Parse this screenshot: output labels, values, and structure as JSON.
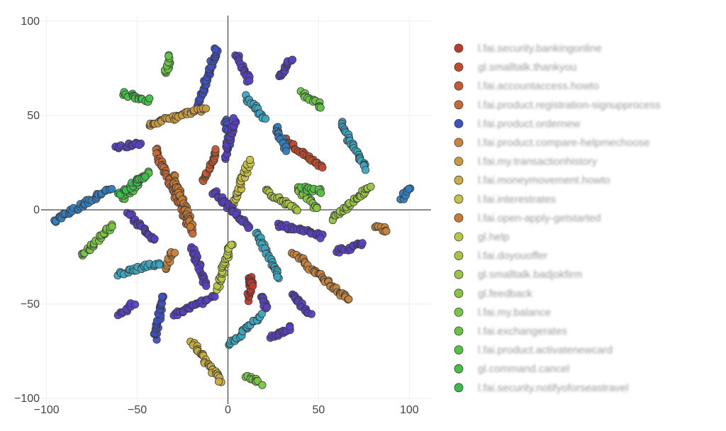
{
  "chart_data": {
    "type": "scatter",
    "title": "",
    "xlabel": "",
    "ylabel": "",
    "xlim": [
      -103,
      112
    ],
    "ylim": [
      -103,
      103
    ],
    "x_ticks": [
      -100,
      -50,
      0,
      50,
      100
    ],
    "y_ticks": [
      -100,
      -50,
      0,
      50,
      100
    ],
    "grid": true,
    "zero_lines": true,
    "legend_position": "right",
    "marker_outline": "#3a3a3a",
    "series": [
      {
        "name": "l.fai.security.bankingonline",
        "color": "#c0392b",
        "clusters": [
          {
            "x": [
              11,
              13
            ],
            "y": [
              -48,
              -38
            ]
          },
          {
            "x": [
              12,
              13
            ],
            "y": [
              -40,
              -36
            ]
          }
        ]
      },
      {
        "name": "gl.smalltalk.thankyou",
        "color": "#c44a2c",
        "clusters": [
          {
            "x": [
              32,
              52
            ],
            "y": [
              22,
              37
            ]
          }
        ]
      },
      {
        "name": "l.fai.accountaccess.howto",
        "color": "#c65a30",
        "clusters": [
          {
            "x": [
              -13,
              -6
            ],
            "y": [
              15,
              32
            ]
          }
        ]
      },
      {
        "name": "l.fai.product.registration-signupprocess",
        "color": "#c96a35",
        "clusters": [
          {
            "x": [
              -40,
              -20
            ],
            "y": [
              -12,
              32
            ]
          }
        ]
      },
      {
        "name": "l.fai.product.ordernew",
        "color": "#3f4fc4",
        "clusters": [
          {
            "x": [
              -16,
              -6
            ],
            "y": [
              56,
              86
            ]
          },
          {
            "x": [
              -2,
              2
            ],
            "y": [
              35,
              48
            ]
          },
          {
            "x": [
              -40,
              -36
            ],
            "y": [
              -68,
              -46
            ]
          }
        ]
      },
      {
        "name": "l.fai.product.compare-helpmechoose",
        "color": "#c9833a",
        "clusters": [
          {
            "x": [
              36,
              67
            ],
            "y": [
              -48,
              -23
            ]
          },
          {
            "x": [
              -35,
              -30
            ],
            "y": [
              -31,
              -22
            ]
          },
          {
            "x": [
              81,
              88
            ],
            "y": [
              -11,
              -9
            ]
          }
        ]
      },
      {
        "name": "l.fai.my.transactionhistory",
        "color": "#c99a3e",
        "clusters": [
          {
            "x": [
              -44,
              -12
            ],
            "y": [
              45,
              54
            ]
          }
        ]
      },
      {
        "name": "l.fai.moneymovement.howto",
        "color": "#c9ae40",
        "clusters": [
          {
            "x": [
              -20,
              -4
            ],
            "y": [
              -91,
              -70
            ]
          }
        ]
      },
      {
        "name": "l.fai.interestrates",
        "color": "#c8c243",
        "clusters": [
          {
            "x": [
              2,
              12
            ],
            "y": [
              0,
              26
            ]
          }
        ]
      },
      {
        "name": "l.fai.open-apply-getstarted",
        "color": "#c97a32",
        "clusters": [
          {
            "x": [
              -30,
              -20
            ],
            "y": [
              -8,
              18
            ]
          }
        ]
      },
      {
        "name": "gl.help",
        "color": "#b8c840",
        "clusters": [
          {
            "x": [
              -6,
              2
            ],
            "y": [
              -42,
              -18
            ]
          }
        ]
      },
      {
        "name": "l.fai.doyouoffer",
        "color": "#a8c63f",
        "clusters": [
          {
            "x": [
              20,
              38
            ],
            "y": [
              0,
              10
            ]
          }
        ]
      },
      {
        "name": "gl.smalltalk.badjokfirm",
        "color": "#98c640",
        "clusters": [
          {
            "x": [
              58,
              78
            ],
            "y": [
              -5,
              12
            ]
          }
        ]
      },
      {
        "name": "gl.feedback",
        "color": "#88c641",
        "clusters": [
          {
            "x": [
              38,
              50
            ],
            "y": [
              0,
              12
            ]
          }
        ]
      },
      {
        "name": "l.fai.my.balance",
        "color": "#78c642",
        "clusters": [
          {
            "x": [
              -80,
              -64
            ],
            "y": [
              -24,
              -8
            ]
          },
          {
            "x": [
              10,
              18
            ],
            "y": [
              -92,
              -88
            ]
          }
        ]
      },
      {
        "name": "l.fai.exchangerates",
        "color": "#66c444",
        "clusters": [
          {
            "x": [
              40,
              52
            ],
            "y": [
              55,
              62
            ]
          },
          {
            "x": [
              -34,
              -32
            ],
            "y": [
              72,
              82
            ]
          }
        ]
      },
      {
        "name": "l.fai.product.activatenewcard",
        "color": "#55c246",
        "clusters": [
          {
            "x": [
              -58,
              -44
            ],
            "y": [
              6,
              20
            ]
          },
          {
            "x": [
              40,
              52
            ],
            "y": [
              10,
              12
            ]
          }
        ]
      },
      {
        "name": "gl.command.cancel",
        "color": "#44bf48",
        "clusters": [
          {
            "x": [
              -58,
              -44
            ],
            "y": [
              58,
              62
            ]
          }
        ]
      },
      {
        "name": "l.fai.security.notifyoforseastravel",
        "color": "#3bbd4c",
        "clusters": [
          {
            "x": [
              -60,
              -46
            ],
            "y": [
              8,
              18
            ]
          }
        ]
      },
      {
        "name": "",
        "color": "#3aa7c0",
        "clusters": [
          {
            "x": [
              16,
              28
            ],
            "y": [
              -36,
              -12
            ]
          },
          {
            "x": [
              0,
              18
            ],
            "y": [
              -72,
              -56
            ]
          },
          {
            "x": [
              62,
              76
            ],
            "y": [
              22,
              46
            ]
          },
          {
            "x": [
              -60,
              -38
            ],
            "y": [
              -34,
              -28
            ]
          },
          {
            "x": [
              10,
              20
            ],
            "y": [
              48,
              60
            ]
          }
        ]
      },
      {
        "name": "",
        "color": "#2f7ec0",
        "clusters": [
          {
            "x": [
              -96,
              -65
            ],
            "y": [
              -6,
              11
            ]
          },
          {
            "x": [
              26,
              32
            ],
            "y": [
              32,
              44
            ]
          },
          {
            "x": [
              96,
              100
            ],
            "y": [
              6,
              12
            ]
          }
        ]
      },
      {
        "name": "",
        "color": "#5a3fc4",
        "clusters": [
          {
            "x": [
              -55,
              -40
            ],
            "y": [
              -16,
              -2
            ]
          },
          {
            "x": [
              -30,
              -8
            ],
            "y": [
              -56,
              -46
            ]
          },
          {
            "x": [
              -20,
              -12
            ],
            "y": [
              -40,
              -20
            ]
          },
          {
            "x": [
              -62,
              -48
            ],
            "y": [
              33,
              35
            ]
          },
          {
            "x": [
              5,
              12
            ],
            "y": [
              68,
              82
            ]
          },
          {
            "x": [
              28,
              35
            ],
            "y": [
              70,
              80
            ]
          },
          {
            "x": [
              36,
              45
            ],
            "y": [
              -56,
              -44
            ]
          },
          {
            "x": [
              60,
              75
            ],
            "y": [
              -22,
              -18
            ]
          },
          {
            "x": [
              28,
              52
            ],
            "y": [
              -14,
              -8
            ]
          },
          {
            "x": [
              -60,
              -52
            ],
            "y": [
              -56,
              -50
            ]
          },
          {
            "x": [
              -8,
              12
            ],
            "y": [
              -10,
              10
            ]
          },
          {
            "x": [
              24,
              35
            ],
            "y": [
              -68,
              -62
            ]
          },
          {
            "x": [
              18,
              22
            ],
            "y": [
              -52,
              -46
            ]
          },
          {
            "x": [
              -2,
              4
            ],
            "y": [
              28,
              48
            ]
          }
        ]
      }
    ]
  }
}
